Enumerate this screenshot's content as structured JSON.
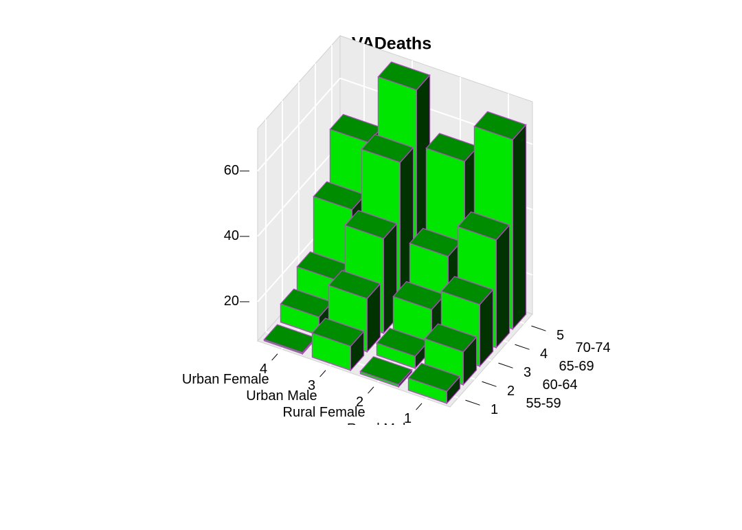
{
  "chart_data": {
    "type": "bar3d",
    "title": "VADeaths",
    "categories": [
      "Rural Male",
      "Rural Female",
      "Urban Male",
      "Urban Female"
    ],
    "rows": [
      null,
      "55-59",
      "60-64",
      "65-69",
      "70-74"
    ],
    "values": [
      [
        11.7,
        8.7,
        15.4,
        8.4
      ],
      [
        18.1,
        11.7,
        24.3,
        13.6
      ],
      [
        26.9,
        20.3,
        37.0,
        19.3
      ],
      [
        41.0,
        30.9,
        54.6,
        35.1
      ],
      [
        66.0,
        54.3,
        71.1,
        50.0
      ]
    ],
    "xlim": [
      0.5,
      4.5
    ],
    "xticks": [
      1,
      2,
      3,
      4
    ],
    "ylim": [
      0.5,
      5.5
    ],
    "yticks": [
      1,
      2,
      3,
      4,
      5
    ],
    "zlim": [
      8,
      73
    ],
    "zticks": [
      20,
      40,
      60
    ],
    "grid": true,
    "colors": {
      "front": "#00e600",
      "top": "#008c00",
      "side": "#003300",
      "border": "#c040d0",
      "panel": "#ebebeb"
    }
  }
}
